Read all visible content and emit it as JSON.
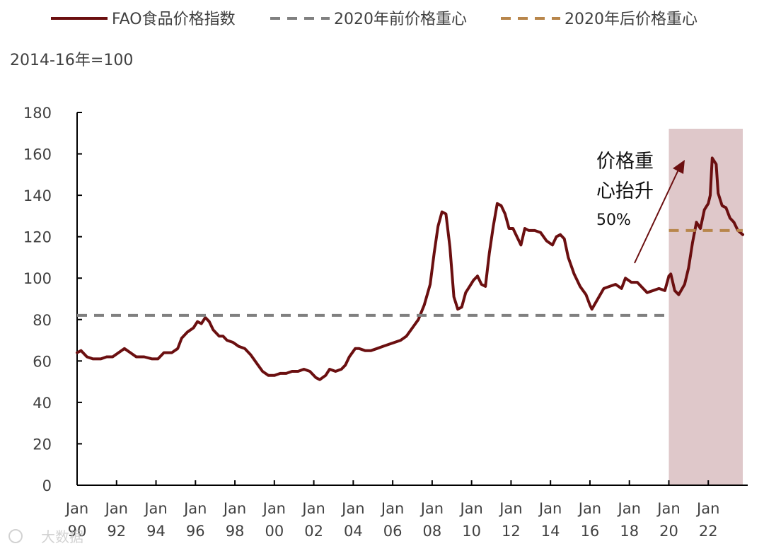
{
  "legend": {
    "main_series": "FAO食品价格指数",
    "pre2020": "2020年前价格重心",
    "post2020": "2020年后价格重心"
  },
  "unit_label": "2014-16年=100",
  "annotation": {
    "line1": "价格重",
    "line2": "心抬升",
    "pct": "50%"
  },
  "watermark": "大数据",
  "colors": {
    "main_line": "#6b0f10",
    "pre_line": "#808080",
    "post_line": "#b8864b",
    "shade": "#dfc8ca",
    "axis": "#000000"
  },
  "chart_data": {
    "type": "line",
    "x_unit": "year",
    "xlim": [
      1990,
      2024
    ],
    "ylim": [
      0,
      180
    ],
    "y_ticks": [
      0,
      20,
      40,
      60,
      80,
      100,
      120,
      140,
      160,
      180
    ],
    "x_ticks": [
      {
        "year": 1990,
        "line1": "Jan",
        "line2": "90"
      },
      {
        "year": 1992,
        "line1": "Jan",
        "line2": "92"
      },
      {
        "year": 1994,
        "line1": "Jan",
        "line2": "94"
      },
      {
        "year": 1996,
        "line1": "Jan",
        "line2": "96"
      },
      {
        "year": 1998,
        "line1": "Jan",
        "line2": "98"
      },
      {
        "year": 2000,
        "line1": "Jan",
        "line2": "00"
      },
      {
        "year": 2002,
        "line1": "Jan",
        "line2": "02"
      },
      {
        "year": 2004,
        "line1": "Jan",
        "line2": "04"
      },
      {
        "year": 2006,
        "line1": "Jan",
        "line2": "06"
      },
      {
        "year": 2008,
        "line1": "Jan",
        "line2": "08"
      },
      {
        "year": 2010,
        "line1": "Jan",
        "line2": "10"
      },
      {
        "year": 2012,
        "line1": "Jan",
        "line2": "12"
      },
      {
        "year": 2014,
        "line1": "Jan",
        "line2": "14"
      },
      {
        "year": 2016,
        "line1": "Jan",
        "line2": "16"
      },
      {
        "year": 2018,
        "line1": "Jan",
        "line2": "18"
      },
      {
        "year": 2020,
        "line1": "Jan",
        "line2": "20"
      },
      {
        "year": 2022,
        "line1": "Jan",
        "line2": "22"
      }
    ],
    "shaded_region": [
      2020,
      2023.75
    ],
    "series": [
      {
        "name": "FAO食品价格指数",
        "style": "solid",
        "points": [
          [
            1990.0,
            64
          ],
          [
            1990.2,
            65
          ],
          [
            1990.5,
            62
          ],
          [
            1990.8,
            61
          ],
          [
            1991.2,
            61
          ],
          [
            1991.5,
            62
          ],
          [
            1991.8,
            62
          ],
          [
            1992.1,
            64
          ],
          [
            1992.4,
            66
          ],
          [
            1992.7,
            64
          ],
          [
            1993.0,
            62
          ],
          [
            1993.4,
            62
          ],
          [
            1993.8,
            61
          ],
          [
            1994.1,
            61
          ],
          [
            1994.4,
            64
          ],
          [
            1994.8,
            64
          ],
          [
            1995.1,
            66
          ],
          [
            1995.3,
            71
          ],
          [
            1995.6,
            74
          ],
          [
            1995.9,
            76
          ],
          [
            1996.1,
            79
          ],
          [
            1996.3,
            78
          ],
          [
            1996.5,
            81
          ],
          [
            1996.7,
            79
          ],
          [
            1996.9,
            75
          ],
          [
            1997.2,
            72
          ],
          [
            1997.4,
            72
          ],
          [
            1997.6,
            70
          ],
          [
            1997.9,
            69
          ],
          [
            1998.2,
            67
          ],
          [
            1998.5,
            66
          ],
          [
            1998.8,
            63
          ],
          [
            1999.1,
            59
          ],
          [
            1999.4,
            55
          ],
          [
            1999.7,
            53
          ],
          [
            2000.0,
            53
          ],
          [
            2000.3,
            54
          ],
          [
            2000.6,
            54
          ],
          [
            2000.9,
            55
          ],
          [
            2001.2,
            55
          ],
          [
            2001.5,
            56
          ],
          [
            2001.8,
            55
          ],
          [
            2002.1,
            52
          ],
          [
            2002.3,
            51
          ],
          [
            2002.6,
            53
          ],
          [
            2002.8,
            56
          ],
          [
            2003.1,
            55
          ],
          [
            2003.4,
            56
          ],
          [
            2003.6,
            58
          ],
          [
            2003.8,
            62
          ],
          [
            2004.1,
            66
          ],
          [
            2004.3,
            66
          ],
          [
            2004.6,
            65
          ],
          [
            2004.9,
            65
          ],
          [
            2005.2,
            66
          ],
          [
            2005.5,
            67
          ],
          [
            2005.8,
            68
          ],
          [
            2006.1,
            69
          ],
          [
            2006.4,
            70
          ],
          [
            2006.7,
            72
          ],
          [
            2007.0,
            76
          ],
          [
            2007.3,
            80
          ],
          [
            2007.6,
            87
          ],
          [
            2007.9,
            97
          ],
          [
            2008.1,
            112
          ],
          [
            2008.3,
            125
          ],
          [
            2008.5,
            132
          ],
          [
            2008.7,
            131
          ],
          [
            2008.9,
            115
          ],
          [
            2009.1,
            91
          ],
          [
            2009.3,
            85
          ],
          [
            2009.5,
            86
          ],
          [
            2009.7,
            93
          ],
          [
            2009.9,
            96
          ],
          [
            2010.1,
            99
          ],
          [
            2010.3,
            101
          ],
          [
            2010.5,
            97
          ],
          [
            2010.7,
            96
          ],
          [
            2010.9,
            112
          ],
          [
            2011.1,
            125
          ],
          [
            2011.3,
            136
          ],
          [
            2011.5,
            135
          ],
          [
            2011.7,
            131
          ],
          [
            2011.9,
            124
          ],
          [
            2012.1,
            124
          ],
          [
            2012.3,
            120
          ],
          [
            2012.5,
            116
          ],
          [
            2012.7,
            124
          ],
          [
            2012.9,
            123
          ],
          [
            2013.2,
            123
          ],
          [
            2013.5,
            122
          ],
          [
            2013.8,
            118
          ],
          [
            2014.1,
            116
          ],
          [
            2014.3,
            120
          ],
          [
            2014.5,
            121
          ],
          [
            2014.7,
            119
          ],
          [
            2014.9,
            110
          ],
          [
            2015.2,
            102
          ],
          [
            2015.5,
            96
          ],
          [
            2015.8,
            92
          ],
          [
            2016.0,
            87
          ],
          [
            2016.1,
            85
          ],
          [
            2016.4,
            90
          ],
          [
            2016.7,
            95
          ],
          [
            2017.0,
            96
          ],
          [
            2017.3,
            97
          ],
          [
            2017.6,
            95
          ],
          [
            2017.8,
            100
          ],
          [
            2018.1,
            98
          ],
          [
            2018.4,
            98
          ],
          [
            2018.7,
            95
          ],
          [
            2018.9,
            93
          ],
          [
            2019.2,
            94
          ],
          [
            2019.5,
            95
          ],
          [
            2019.8,
            94
          ],
          [
            2020.0,
            101
          ],
          [
            2020.1,
            102
          ],
          [
            2020.3,
            94
          ],
          [
            2020.5,
            92
          ],
          [
            2020.8,
            97
          ],
          [
            2021.0,
            105
          ],
          [
            2021.2,
            117
          ],
          [
            2021.4,
            127
          ],
          [
            2021.6,
            124
          ],
          [
            2021.8,
            133
          ],
          [
            2022.0,
            136
          ],
          [
            2022.1,
            140
          ],
          [
            2022.2,
            158
          ],
          [
            2022.4,
            155
          ],
          [
            2022.5,
            141
          ],
          [
            2022.7,
            135
          ],
          [
            2022.9,
            134
          ],
          [
            2023.1,
            129
          ],
          [
            2023.3,
            127
          ],
          [
            2023.5,
            123
          ],
          [
            2023.75,
            121
          ]
        ]
      },
      {
        "name": "2020年前价格重心",
        "style": "dashed",
        "points": [
          [
            1990.0,
            82
          ],
          [
            2020.0,
            82
          ]
        ]
      },
      {
        "name": "2020年后价格重心",
        "style": "dashed",
        "points": [
          [
            2020.0,
            123
          ],
          [
            2023.75,
            123
          ]
        ]
      }
    ]
  }
}
